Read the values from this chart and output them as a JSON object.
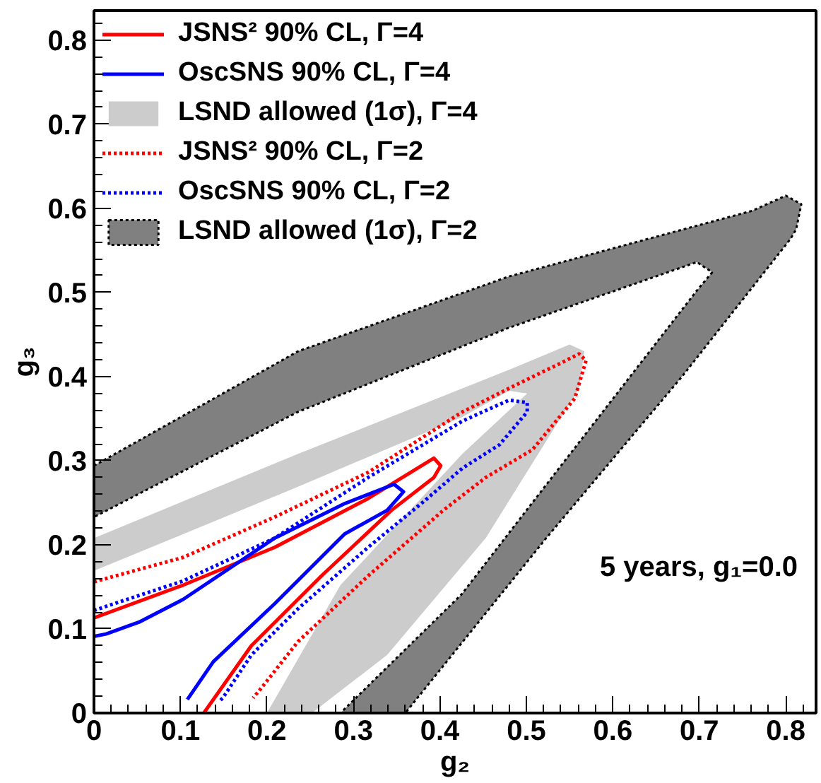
{
  "chart_data": {
    "type": "line",
    "xlabel": "g₂",
    "ylabel": "g₃",
    "xlim": [
      0,
      0.835
    ],
    "ylim": [
      0,
      0.835
    ],
    "xticks": [
      0,
      0.1,
      0.2,
      0.3,
      0.4,
      0.5,
      0.6,
      0.7,
      0.8
    ],
    "yticks": [
      0,
      0.1,
      0.2,
      0.3,
      0.4,
      0.5,
      0.6,
      0.7,
      0.8
    ],
    "grid": false,
    "legend": "top left",
    "marker": "none",
    "annotations": [
      "5 years, g₁=0.0"
    ],
    "series": [
      {
        "name": "JSNS² 90% CL, Γ=4",
        "color": "#ff0000",
        "line_style": "solid",
        "x": [
          0,
          0.103,
          0.209,
          0.317,
          0.393,
          0.401,
          0.393,
          0.344,
          0.263,
          0.182,
          0.127
        ],
        "values": [
          0.113,
          0.152,
          0.197,
          0.255,
          0.303,
          0.294,
          0.28,
          0.241,
          0.163,
          0.08,
          0
        ]
      },
      {
        "name": "OscSNS 90% CL, Γ=4",
        "color": "#0000ff",
        "line_style": "solid",
        "x": [
          0,
          0.014,
          0.052,
          0.103,
          0.209,
          0.29,
          0.347,
          0.358,
          0.339,
          0.29,
          0.209,
          0.138,
          0.108
        ],
        "values": [
          0.091,
          0.094,
          0.108,
          0.135,
          0.208,
          0.249,
          0.272,
          0.263,
          0.241,
          0.213,
          0.13,
          0.061,
          0.016
        ]
      },
      {
        "name": "LSND allowed (1σ), Γ=4",
        "type": "area",
        "color": "#cccccc",
        "x": [
          0,
          0.236,
          0.48,
          0.55,
          0.567,
          0.561,
          0.453,
          0.339,
          0.252,
          0.2,
          0.285,
          0.426,
          0.501,
          0.48,
          0.426,
          0.236,
          0
        ],
        "values": [
          0.208,
          0.308,
          0.408,
          0.438,
          0.43,
          0.386,
          0.208,
          0.069,
          0,
          0,
          0.152,
          0.308,
          0.38,
          0.383,
          0.352,
          0.269,
          0.169
        ]
      },
      {
        "name": "JSNS² 90% CL, Γ=2",
        "color": "#ff0000",
        "line_style": "dotted",
        "x": [
          0,
          0.103,
          0.209,
          0.317,
          0.426,
          0.48,
          0.534,
          0.561,
          0.569,
          0.556,
          0.507,
          0.453,
          0.404,
          0.317,
          0.236,
          0.193,
          0.184
        ],
        "values": [
          0.156,
          0.185,
          0.233,
          0.286,
          0.358,
          0.386,
          0.413,
          0.427,
          0.419,
          0.374,
          0.313,
          0.28,
          0.241,
          0.163,
          0.085,
          0.029,
          0.018
        ]
      },
      {
        "name": "OscSNS 90% CL, Γ=2",
        "color": "#0000ff",
        "line_style": "dotted",
        "x": [
          0,
          0.103,
          0.209,
          0.317,
          0.426,
          0.48,
          0.501,
          0.501,
          0.469,
          0.426,
          0.382,
          0.317,
          0.236,
          0.182,
          0.149,
          0.144
        ],
        "values": [
          0.122,
          0.157,
          0.208,
          0.28,
          0.347,
          0.372,
          0.369,
          0.358,
          0.319,
          0.291,
          0.252,
          0.197,
          0.124,
          0.069,
          0.018,
          0.013
        ]
      },
      {
        "name": "LSND allowed (1σ), Γ=2",
        "type": "area",
        "color": "#808080",
        "line_style": "dotted",
        "x": [
          0,
          0.236,
          0.48,
          0.761,
          0.8,
          0.818,
          0.812,
          0.805,
          0.68,
          0.523,
          0.36,
          0.285,
          0.425,
          0.534,
          0.697,
          0.715,
          0.697,
          0.48,
          0.236,
          0
        ],
        "values": [
          0.294,
          0.43,
          0.519,
          0.597,
          0.615,
          0.605,
          0.575,
          0.563,
          0.4,
          0.208,
          0,
          0,
          0.141,
          0.286,
          0.502,
          0.524,
          0.536,
          0.458,
          0.358,
          0.233
        ]
      }
    ]
  }
}
